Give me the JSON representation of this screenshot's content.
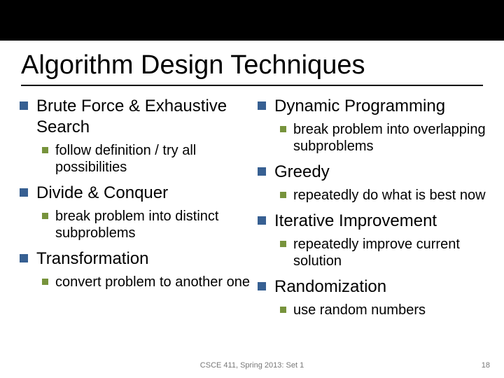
{
  "colors": {
    "topbar": "#000000",
    "bullet_l1": "#376092",
    "bullet_l2": "#77933c",
    "text": "#000000",
    "footer": "#777777",
    "background": "#ffffff"
  },
  "title": "Algorithm Design Techniques",
  "left": [
    {
      "label": "Brute Force & Exhaustive Search",
      "sub": [
        "follow definition / try all possibilities"
      ]
    },
    {
      "label": "Divide & Conquer",
      "sub": [
        "break problem into distinct subproblems"
      ]
    },
    {
      "label": "Transformation",
      "sub": [
        "convert problem to another one"
      ]
    }
  ],
  "right": [
    {
      "label": "Dynamic Programming",
      "sub": [
        "break problem into overlapping subproblems"
      ]
    },
    {
      "label": "Greedy",
      "sub": [
        "repeatedly do what is best now"
      ]
    },
    {
      "label": "Iterative Improvement",
      "sub": [
        "repeatedly improve current solution"
      ]
    },
    {
      "label": "Randomization",
      "sub": [
        "use random numbers"
      ]
    }
  ],
  "footer": "CSCE 411, Spring 2013: Set 1",
  "page_number": "18"
}
